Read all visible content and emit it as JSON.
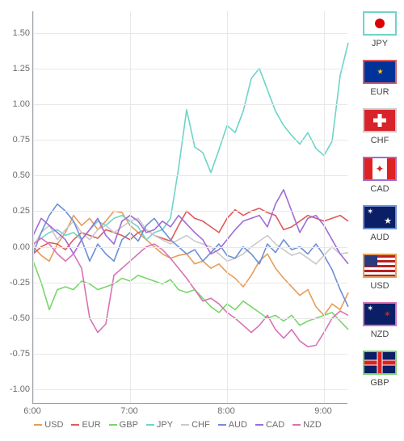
{
  "chart": {
    "type": "line",
    "background_color": "#ffffff",
    "grid_color": "#e8e8e8",
    "axis_color": "#9aa0a6",
    "label_fontsize": 11,
    "label_color": "#6b6b6b",
    "line_width": 1.6,
    "x": {
      "min": 6.0,
      "max": 9.25,
      "ticks": [
        6.0,
        7.0,
        8.0,
        9.0
      ],
      "tick_labels": [
        "6:00",
        "7:00",
        "8:00",
        "9:00"
      ]
    },
    "y": {
      "min": -1.1,
      "max": 1.65,
      "ticks": [
        -1.0,
        -0.75,
        -0.5,
        -0.25,
        0.0,
        0.25,
        0.5,
        0.75,
        1.0,
        1.25,
        1.5
      ],
      "tick_labels": [
        "-1.00",
        "-0.75",
        "-0.50",
        "-0.25",
        "0.00",
        "0.25",
        "0.50",
        "0.75",
        "1.00",
        "1.25",
        "1.50"
      ]
    },
    "x_step_minutes": 5,
    "series": {
      "USD": {
        "color": "#e69d57",
        "values": [
          0.0,
          -0.06,
          -0.1,
          0.02,
          0.1,
          0.22,
          0.15,
          0.2,
          0.12,
          0.18,
          0.25,
          0.24,
          0.15,
          0.1,
          0.05,
          0.0,
          -0.05,
          -0.08,
          -0.06,
          -0.05,
          -0.12,
          -0.1,
          -0.15,
          -0.12,
          -0.18,
          -0.22,
          -0.28,
          -0.2,
          -0.1,
          -0.05,
          -0.15,
          -0.22,
          -0.28,
          -0.34,
          -0.3,
          -0.42,
          -0.48,
          -0.4,
          -0.44,
          -0.32
        ]
      },
      "EUR": {
        "color": "#e05a5a",
        "values": [
          -0.05,
          0.0,
          0.03,
          0.02,
          -0.02,
          0.05,
          0.1,
          0.08,
          0.06,
          0.12,
          0.1,
          0.08,
          0.05,
          0.1,
          0.12,
          0.08,
          0.06,
          0.04,
          0.15,
          0.25,
          0.2,
          0.18,
          0.14,
          0.1,
          0.2,
          0.26,
          0.22,
          0.25,
          0.27,
          0.24,
          0.22,
          0.12,
          0.14,
          0.18,
          0.22,
          0.2,
          0.18,
          0.2,
          0.22,
          0.18
        ]
      },
      "GBP": {
        "color": "#78d66a",
        "values": [
          -0.1,
          -0.25,
          -0.44,
          -0.3,
          -0.28,
          -0.3,
          -0.24,
          -0.26,
          -0.3,
          -0.28,
          -0.26,
          -0.22,
          -0.24,
          -0.2,
          -0.22,
          -0.24,
          -0.26,
          -0.23,
          -0.3,
          -0.32,
          -0.3,
          -0.36,
          -0.42,
          -0.46,
          -0.4,
          -0.44,
          -0.38,
          -0.42,
          -0.46,
          -0.5,
          -0.48,
          -0.52,
          -0.48,
          -0.55,
          -0.52,
          -0.5,
          -0.48,
          -0.46,
          -0.52,
          -0.58
        ]
      },
      "JPY": {
        "color": "#6dd4c9",
        "values": [
          0.02,
          0.06,
          0.1,
          0.12,
          0.08,
          0.1,
          0.05,
          0.12,
          0.18,
          0.15,
          0.2,
          0.22,
          0.18,
          0.14,
          0.05,
          0.1,
          0.12,
          0.2,
          0.55,
          0.96,
          0.7,
          0.66,
          0.52,
          0.68,
          0.85,
          0.8,
          0.95,
          1.18,
          1.25,
          1.1,
          0.95,
          0.85,
          0.78,
          0.72,
          0.8,
          0.69,
          0.64,
          0.74,
          1.2,
          1.43
        ]
      },
      "CHF": {
        "color": "#c9c9c9",
        "values": [
          0.0,
          0.1,
          0.15,
          0.05,
          0.12,
          0.18,
          0.1,
          0.05,
          0.12,
          0.15,
          0.1,
          0.14,
          0.18,
          0.2,
          0.12,
          0.08,
          0.05,
          0.02,
          0.05,
          0.08,
          0.04,
          0.02,
          0.0,
          -0.05,
          -0.1,
          -0.08,
          -0.05,
          0.0,
          0.04,
          0.08,
          0.02,
          -0.02,
          -0.06,
          -0.04,
          -0.08,
          -0.12,
          -0.06,
          0.0,
          -0.05,
          -0.04
        ]
      },
      "AUD": {
        "color": "#6d8fd6",
        "values": [
          -0.05,
          0.1,
          0.22,
          0.3,
          0.25,
          0.18,
          0.05,
          -0.1,
          0.02,
          -0.05,
          -0.1,
          0.05,
          0.1,
          0.04,
          0.15,
          0.2,
          0.12,
          0.05,
          0.0,
          -0.05,
          -0.02,
          -0.1,
          -0.04,
          0.02,
          -0.06,
          -0.08,
          0.0,
          -0.05,
          -0.12,
          0.02,
          -0.04,
          0.05,
          -0.02,
          0.0,
          -0.05,
          0.02,
          -0.06,
          -0.16,
          -0.3,
          -0.42
        ]
      },
      "CAD": {
        "color": "#a06bd6",
        "values": [
          0.08,
          0.2,
          0.15,
          0.1,
          0.05,
          -0.05,
          0.05,
          0.12,
          0.2,
          0.08,
          0.02,
          0.18,
          0.22,
          0.18,
          0.1,
          0.12,
          0.18,
          0.14,
          0.22,
          0.16,
          0.1,
          0.05,
          -0.05,
          -0.02,
          0.05,
          0.12,
          0.18,
          0.2,
          0.22,
          0.14,
          0.3,
          0.4,
          0.25,
          0.1,
          0.2,
          0.22,
          0.15,
          0.05,
          -0.05,
          -0.12
        ]
      },
      "NZD": {
        "color": "#d972b5",
        "values": [
          0.02,
          0.06,
          0.02,
          -0.05,
          -0.1,
          -0.05,
          -0.15,
          -0.5,
          -0.6,
          -0.54,
          -0.2,
          -0.15,
          -0.1,
          -0.05,
          0.0,
          0.02,
          -0.02,
          -0.08,
          -0.15,
          -0.22,
          -0.3,
          -0.38,
          -0.36,
          -0.4,
          -0.46,
          -0.5,
          -0.55,
          -0.6,
          -0.55,
          -0.48,
          -0.58,
          -0.64,
          -0.58,
          -0.66,
          -0.7,
          -0.69,
          -0.6,
          -0.5,
          -0.45,
          -0.48
        ]
      }
    }
  },
  "legend": [
    {
      "code": "USD",
      "color": "#e69d57"
    },
    {
      "code": "EUR",
      "color": "#e05a5a"
    },
    {
      "code": "GBP",
      "color": "#78d66a"
    },
    {
      "code": "JPY",
      "color": "#6dd4c9"
    },
    {
      "code": "CHF",
      "color": "#c9c9c9"
    },
    {
      "code": "AUD",
      "color": "#6d8fd6"
    },
    {
      "code": "CAD",
      "color": "#a06bd6"
    },
    {
      "code": "NZD",
      "color": "#d972b5"
    }
  ],
  "side_flags": [
    {
      "code": "JPY",
      "border": "#6dd4c9",
      "flag": "jpy"
    },
    {
      "code": "EUR",
      "border": "#e05a5a",
      "flag": "eur"
    },
    {
      "code": "CHF",
      "border": "#c9c9c9",
      "flag": "chf"
    },
    {
      "code": "CAD",
      "border": "#a06bd6",
      "flag": "cad"
    },
    {
      "code": "AUD",
      "border": "#6d8fd6",
      "flag": "aud"
    },
    {
      "code": "USD",
      "border": "#e69d57",
      "flag": "usd"
    },
    {
      "code": "NZD",
      "border": "#d972b5",
      "flag": "nzd"
    },
    {
      "code": "GBP",
      "border": "#78d66a",
      "flag": "gbp"
    }
  ]
}
